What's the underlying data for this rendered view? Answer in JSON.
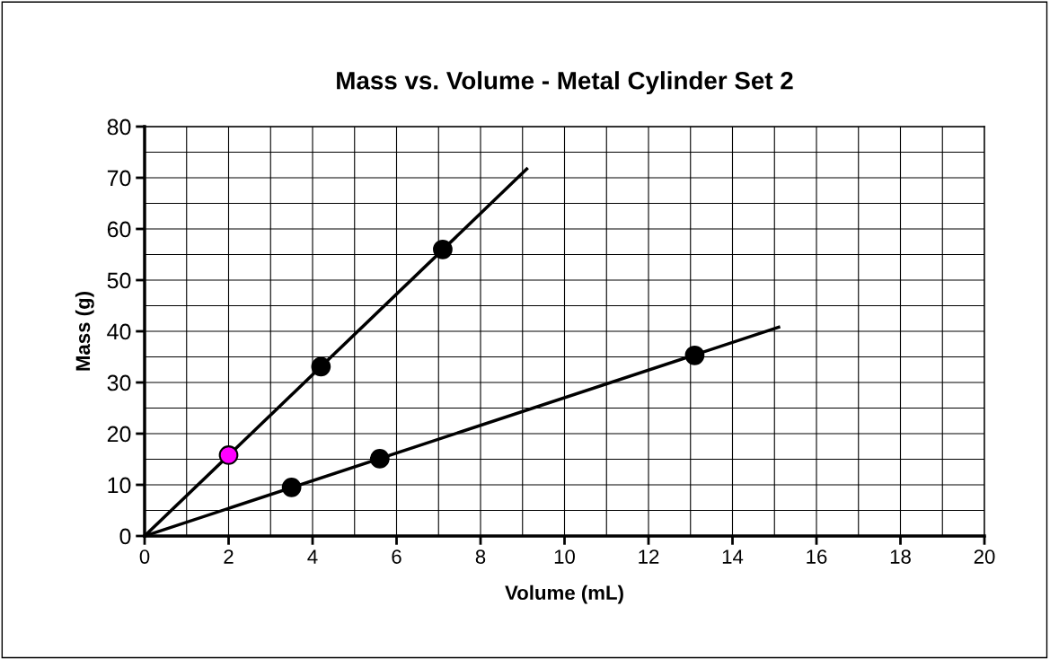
{
  "chart_data": {
    "type": "scatter",
    "title": "Mass vs. Volume - Metal Cylinder Set 2",
    "xlabel": "Volume (mL)",
    "ylabel": "Mass (g)",
    "xlim": [
      0,
      20
    ],
    "ylim": [
      0,
      80
    ],
    "xticks": [
      0,
      2,
      4,
      6,
      8,
      10,
      12,
      14,
      16,
      18,
      20
    ],
    "yticks": [
      0,
      10,
      20,
      30,
      40,
      50,
      60,
      70,
      80
    ],
    "grid": true,
    "marker": "circle",
    "series": [
      {
        "x": [
          2,
          4.2,
          7.1
        ],
        "values": [
          15.8,
          33.1,
          56.0
        ],
        "colors": [
          "#ff00ff",
          "#000000",
          "#000000"
        ]
      },
      {
        "x": [
          3.5,
          5.6,
          13.1
        ],
        "values": [
          9.5,
          15.1,
          35.3
        ],
        "color": "#000000"
      },
      {
        "type": "line",
        "x": [
          0,
          9.1
        ],
        "values": [
          0,
          71.7
        ],
        "color": "#000000",
        "marker": "none"
      },
      {
        "type": "line",
        "x": [
          0,
          15.1
        ],
        "values": [
          0,
          40.8
        ],
        "color": "#000000",
        "marker": "none"
      }
    ]
  }
}
